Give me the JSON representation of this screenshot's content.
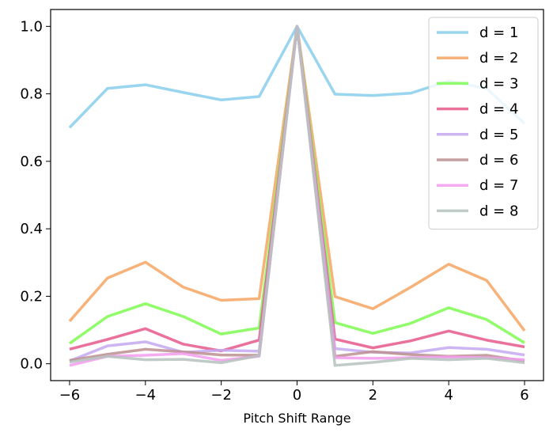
{
  "chart_data": {
    "type": "line",
    "title": "",
    "xlabel": "Pitch Shift Range",
    "ylabel": "",
    "xlim": [
      -6.5,
      6.5
    ],
    "ylim": [
      -0.05,
      1.05
    ],
    "x": [
      -6,
      -5,
      -4,
      -3,
      -2,
      -1,
      0,
      1,
      2,
      3,
      4,
      5,
      6
    ],
    "xticks": [
      -6,
      -4,
      -2,
      0,
      2,
      4,
      6
    ],
    "xtick_labels": [
      "−6",
      "−4",
      "−2",
      "0",
      "2",
      "4",
      "6"
    ],
    "yticks": [
      0.0,
      0.2,
      0.4,
      0.6,
      0.8,
      1.0
    ],
    "ytick_labels": [
      "0.0",
      "0.2",
      "0.4",
      "0.6",
      "0.8",
      "1.0"
    ],
    "grid": false,
    "legend_position": "top-right",
    "series": [
      {
        "name": "d = 1",
        "color": "#87CEEB",
        "values": [
          0.7,
          0.816,
          0.827,
          0.804,
          0.782,
          0.792,
          1.0,
          0.799,
          0.795,
          0.802,
          0.838,
          0.816,
          0.712
        ]
      },
      {
        "name": "d = 2",
        "color": "#F4A460",
        "values": [
          0.126,
          0.254,
          0.301,
          0.227,
          0.188,
          0.193,
          1.0,
          0.199,
          0.163,
          0.227,
          0.295,
          0.247,
          0.098
        ]
      },
      {
        "name": "d = 3",
        "color": "#7CFC50",
        "values": [
          0.06,
          0.14,
          0.178,
          0.14,
          0.088,
          0.106,
          1.0,
          0.122,
          0.09,
          0.12,
          0.166,
          0.131,
          0.062
        ]
      },
      {
        "name": "d = 4",
        "color": "#E8588C",
        "values": [
          0.043,
          0.072,
          0.104,
          0.058,
          0.038,
          0.07,
          1.0,
          0.073,
          0.047,
          0.068,
          0.097,
          0.07,
          0.05
        ]
      },
      {
        "name": "d = 5",
        "color": "#C3A8F0",
        "values": [
          0.008,
          0.053,
          0.065,
          0.034,
          0.04,
          0.037,
          1.0,
          0.045,
          0.034,
          0.032,
          0.048,
          0.043,
          0.026
        ]
      },
      {
        "name": "d = 6",
        "color": "#BC8F8F",
        "values": [
          0.01,
          0.028,
          0.043,
          0.035,
          0.026,
          0.025,
          1.0,
          0.022,
          0.036,
          0.027,
          0.022,
          0.025,
          0.008
        ]
      },
      {
        "name": "d = 7",
        "color": "#F49BF0",
        "values": [
          -0.005,
          0.022,
          0.025,
          0.03,
          0.01,
          0.022,
          1.0,
          0.018,
          0.016,
          0.018,
          0.02,
          0.018,
          0.012
        ]
      },
      {
        "name": "d = 8",
        "color": "#B5C2BD",
        "values": [
          0.005,
          0.022,
          0.012,
          0.013,
          0.003,
          0.024,
          1.0,
          -0.005,
          0.004,
          0.016,
          0.012,
          0.016,
          0.003
        ]
      }
    ]
  }
}
